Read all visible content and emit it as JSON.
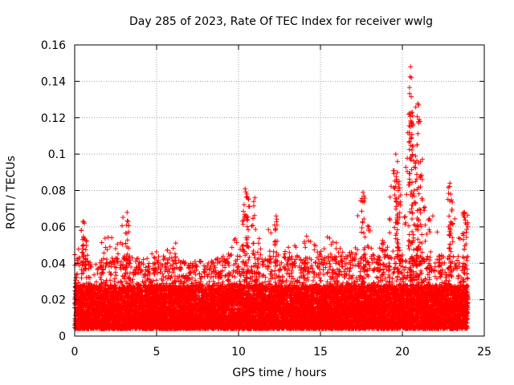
{
  "chart_data": {
    "type": "scatter",
    "title": "Day 285 of 2023, Rate Of TEC Index for receiver wwlg",
    "xlabel": "GPS time / hours",
    "ylabel": "ROTI / TECUs",
    "xlim": [
      0,
      25
    ],
    "ylim": [
      0,
      0.16
    ],
    "xticks": [
      0,
      5,
      10,
      15,
      20,
      25
    ],
    "xtick_labels": [
      "0",
      "5",
      "10",
      "15",
      "20",
      "25"
    ],
    "yticks": [
      0,
      0.02,
      0.04,
      0.06,
      0.08,
      0.1,
      0.12,
      0.14,
      0.16
    ],
    "ytick_labels": [
      "0",
      "0.02",
      "0.04",
      "0.06",
      "0.08",
      "0.1",
      "0.12",
      "0.14",
      "0.16"
    ],
    "grid": true,
    "marker": "+",
    "color": "#ff0000",
    "series": [
      {
        "name": "ROTI",
        "envelope": {
          "x": [
            0,
            0.5,
            1,
            1.5,
            2,
            2.5,
            3,
            3.5,
            4,
            4.5,
            5,
            5.5,
            6,
            6.5,
            7,
            7.5,
            8,
            8.5,
            9,
            9.5,
            10,
            10.5,
            11,
            11.5,
            12,
            12.5,
            13,
            13.5,
            14,
            14.5,
            15,
            15.5,
            16,
            16.5,
            17,
            17.5,
            18,
            18.5,
            19,
            19.5,
            20,
            20.5,
            21,
            21.5,
            22,
            22.5,
            23,
            23.5,
            24
          ],
          "y_max": [
            0.046,
            0.063,
            0.04,
            0.05,
            0.058,
            0.052,
            0.068,
            0.045,
            0.042,
            0.05,
            0.048,
            0.045,
            0.056,
            0.042,
            0.04,
            0.042,
            0.04,
            0.042,
            0.044,
            0.05,
            0.056,
            0.081,
            0.058,
            0.058,
            0.066,
            0.048,
            0.05,
            0.052,
            0.054,
            0.058,
            0.048,
            0.056,
            0.052,
            0.048,
            0.052,
            0.079,
            0.06,
            0.052,
            0.065,
            0.1,
            0.058,
            0.148,
            0.127,
            0.065,
            0.07,
            0.048,
            0.084,
            0.055,
            0.068
          ],
          "y_min": 0.004
        },
        "spikes": [
          {
            "x": 10.4,
            "y": 0.081
          },
          {
            "x": 10.5,
            "y": 0.078
          },
          {
            "x": 11.0,
            "y": 0.076
          },
          {
            "x": 12.3,
            "y": 0.066
          },
          {
            "x": 3.2,
            "y": 0.068
          },
          {
            "x": 17.6,
            "y": 0.079
          },
          {
            "x": 19.6,
            "y": 0.1
          },
          {
            "x": 19.7,
            "y": 0.096
          },
          {
            "x": 19.8,
            "y": 0.085
          },
          {
            "x": 20.5,
            "y": 0.148
          },
          {
            "x": 20.55,
            "y": 0.142
          },
          {
            "x": 20.6,
            "y": 0.123
          },
          {
            "x": 20.5,
            "y": 0.115
          },
          {
            "x": 21.0,
            "y": 0.127
          },
          {
            "x": 20.9,
            "y": 0.105
          },
          {
            "x": 20.8,
            "y": 0.095
          },
          {
            "x": 21.1,
            "y": 0.082
          },
          {
            "x": 22.9,
            "y": 0.084
          },
          {
            "x": 22.95,
            "y": 0.078
          },
          {
            "x": 23.8,
            "y": 0.068
          },
          {
            "x": 0.5,
            "y": 0.063
          }
        ],
        "points_approx": 14000
      }
    ]
  }
}
